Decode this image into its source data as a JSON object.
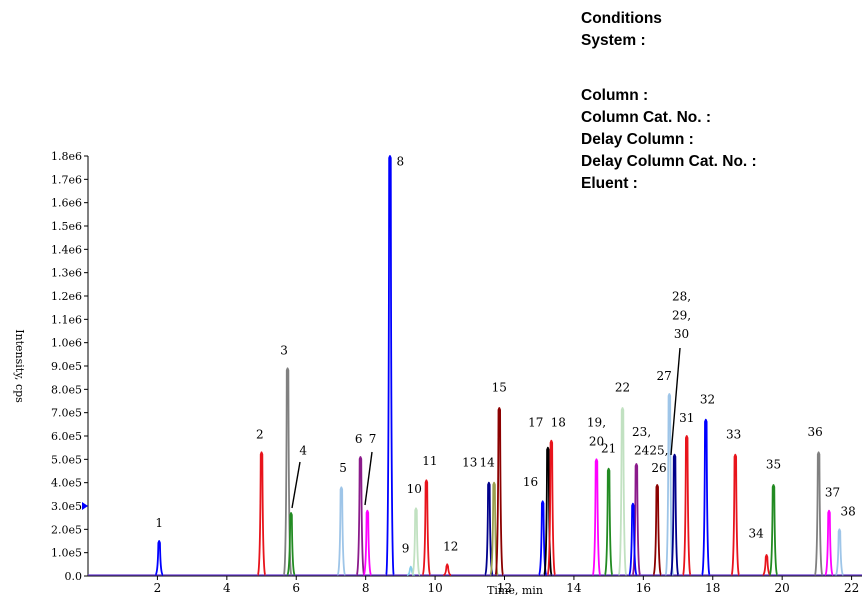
{
  "conditions": {
    "title": "Conditions",
    "system": "System :",
    "column": "Column :",
    "column_cat": "Column Cat. No. :",
    "delay_column": "Delay Column :",
    "delay_column_cat": "Delay Column Cat. No. :",
    "eluent": "Eluent :"
  },
  "chart_data": {
    "type": "line",
    "title": "",
    "xlabel": "Time, min",
    "ylabel": "Intensity, cps",
    "xlim": [
      0,
      22.3
    ],
    "ylim": [
      0,
      1800000
    ],
    "x_ticks": [
      "2",
      "4",
      "6",
      "8",
      "10",
      "12",
      "14",
      "16",
      "18",
      "20",
      "22"
    ],
    "y_ticks": [
      "0.0",
      "1.0e5",
      "2.0e5",
      "3.0e5",
      "4.0e5",
      "5.0e5",
      "6.0e5",
      "7.0e5",
      "8.0e5",
      "9.0e5",
      "1.0e6",
      "1.1e6",
      "1.2e6",
      "1.3e6",
      "1.4e6",
      "1.5e6",
      "1.6e6",
      "1.7e6",
      "1.8e6"
    ],
    "grid": false,
    "peaks": [
      {
        "x": 2.05,
        "y": 150000,
        "color": "#0000ff"
      },
      {
        "x": 5.0,
        "y": 530000,
        "color": "#e8141c"
      },
      {
        "x": 5.75,
        "y": 890000,
        "color": "#808080"
      },
      {
        "x": 5.85,
        "y": 270000,
        "color": "#228b22"
      },
      {
        "x": 7.3,
        "y": 380000,
        "color": "#9ec5e8"
      },
      {
        "x": 7.85,
        "y": 510000,
        "color": "#8b1a8b"
      },
      {
        "x": 8.05,
        "y": 280000,
        "color": "#ff00ff"
      },
      {
        "x": 8.7,
        "y": 1800000,
        "color": "#0000ff"
      },
      {
        "x": 9.3,
        "y": 40000,
        "color": "#87ceeb"
      },
      {
        "x": 9.45,
        "y": 290000,
        "color": "#c1e1c1"
      },
      {
        "x": 9.75,
        "y": 410000,
        "color": "#e8141c"
      },
      {
        "x": 10.35,
        "y": 50000,
        "color": "#e8141c"
      },
      {
        "x": 11.55,
        "y": 400000,
        "color": "#00008b"
      },
      {
        "x": 11.7,
        "y": 400000,
        "color": "#9aa050"
      },
      {
        "x": 11.85,
        "y": 720000,
        "color": "#8b0000"
      },
      {
        "x": 13.1,
        "y": 320000,
        "color": "#0000ff"
      },
      {
        "x": 13.25,
        "y": 550000,
        "color": "#000000"
      },
      {
        "x": 13.35,
        "y": 580000,
        "color": "#e8141c"
      },
      {
        "x": 14.65,
        "y": 500000,
        "color": "#ff00ff"
      },
      {
        "x": 15.0,
        "y": 460000,
        "color": "#228b22"
      },
      {
        "x": 15.4,
        "y": 720000,
        "color": "#c1e1c1"
      },
      {
        "x": 15.8,
        "y": 480000,
        "color": "#8b1a8b"
      },
      {
        "x": 15.7,
        "y": 310000,
        "color": "#0000ff"
      },
      {
        "x": 16.4,
        "y": 390000,
        "color": "#8b0000"
      },
      {
        "x": 16.75,
        "y": 780000,
        "color": "#9ec5e8"
      },
      {
        "x": 16.9,
        "y": 520000,
        "color": "#00008b"
      },
      {
        "x": 17.25,
        "y": 600000,
        "color": "#e8141c"
      },
      {
        "x": 17.8,
        "y": 670000,
        "color": "#0000ff"
      },
      {
        "x": 18.65,
        "y": 520000,
        "color": "#e8141c"
      },
      {
        "x": 19.55,
        "y": 90000,
        "color": "#e8141c"
      },
      {
        "x": 19.75,
        "y": 390000,
        "color": "#228b22"
      },
      {
        "x": 21.05,
        "y": 530000,
        "color": "#808080"
      },
      {
        "x": 21.35,
        "y": 280000,
        "color": "#ff00ff"
      },
      {
        "x": 21.65,
        "y": 200000,
        "color": "#9ec5e8"
      }
    ],
    "labels": [
      {
        "text": "1",
        "x": 2.05,
        "y": 210000
      },
      {
        "text": "2",
        "x": 4.95,
        "y": 590000
      },
      {
        "text": "3",
        "x": 5.65,
        "y": 950000
      },
      {
        "text": "4",
        "x": 6.2,
        "y": 520000
      },
      {
        "text": "5",
        "x": 7.35,
        "y": 445000
      },
      {
        "text": "6",
        "x": 7.8,
        "y": 570000
      },
      {
        "text": "7",
        "x": 8.2,
        "y": 570000
      },
      {
        "text": "8",
        "x": 9.0,
        "y": 1760000
      },
      {
        "text": "9",
        "x": 9.15,
        "y": 100000
      },
      {
        "text": "10",
        "x": 9.4,
        "y": 355000
      },
      {
        "text": "11",
        "x": 9.85,
        "y": 475000
      },
      {
        "text": "12",
        "x": 10.45,
        "y": 110000
      },
      {
        "text": "13",
        "x": 11.0,
        "y": 470000
      },
      {
        "text": "14",
        "x": 11.5,
        "y": 470000
      },
      {
        "text": "15",
        "x": 11.85,
        "y": 790000
      },
      {
        "text": "16",
        "x": 12.75,
        "y": 385000
      },
      {
        "text": "17",
        "x": 12.9,
        "y": 640000
      },
      {
        "text": "18",
        "x": 13.55,
        "y": 640000
      },
      {
        "text": "19,",
        "x": 14.65,
        "y": 640000
      },
      {
        "text": "20",
        "x": 14.65,
        "y": 560000
      },
      {
        "text": "21",
        "x": 15.0,
        "y": 530000
      },
      {
        "text": "22",
        "x": 15.4,
        "y": 790000
      },
      {
        "text": "23,",
        "x": 15.95,
        "y": 600000
      },
      {
        "text": "24",
        "x": 15.95,
        "y": 520000
      },
      {
        "text": "25,",
        "x": 16.45,
        "y": 520000
      },
      {
        "text": "26",
        "x": 16.45,
        "y": 445000
      },
      {
        "text": "27",
        "x": 16.6,
        "y": 840000
      },
      {
        "text": "28,",
        "x": 17.1,
        "y": 1180000
      },
      {
        "text": "29,",
        "x": 17.1,
        "y": 1100000
      },
      {
        "text": "30",
        "x": 17.1,
        "y": 1020000
      },
      {
        "text": "31",
        "x": 17.25,
        "y": 660000
      },
      {
        "text": "32",
        "x": 17.85,
        "y": 740000
      },
      {
        "text": "33",
        "x": 18.6,
        "y": 590000
      },
      {
        "text": "34",
        "x": 19.25,
        "y": 165000
      },
      {
        "text": "35",
        "x": 19.75,
        "y": 460000
      },
      {
        "text": "36",
        "x": 20.95,
        "y": 600000
      },
      {
        "text": "37",
        "x": 21.45,
        "y": 340000
      },
      {
        "text": "38",
        "x": 21.9,
        "y": 260000
      }
    ]
  }
}
